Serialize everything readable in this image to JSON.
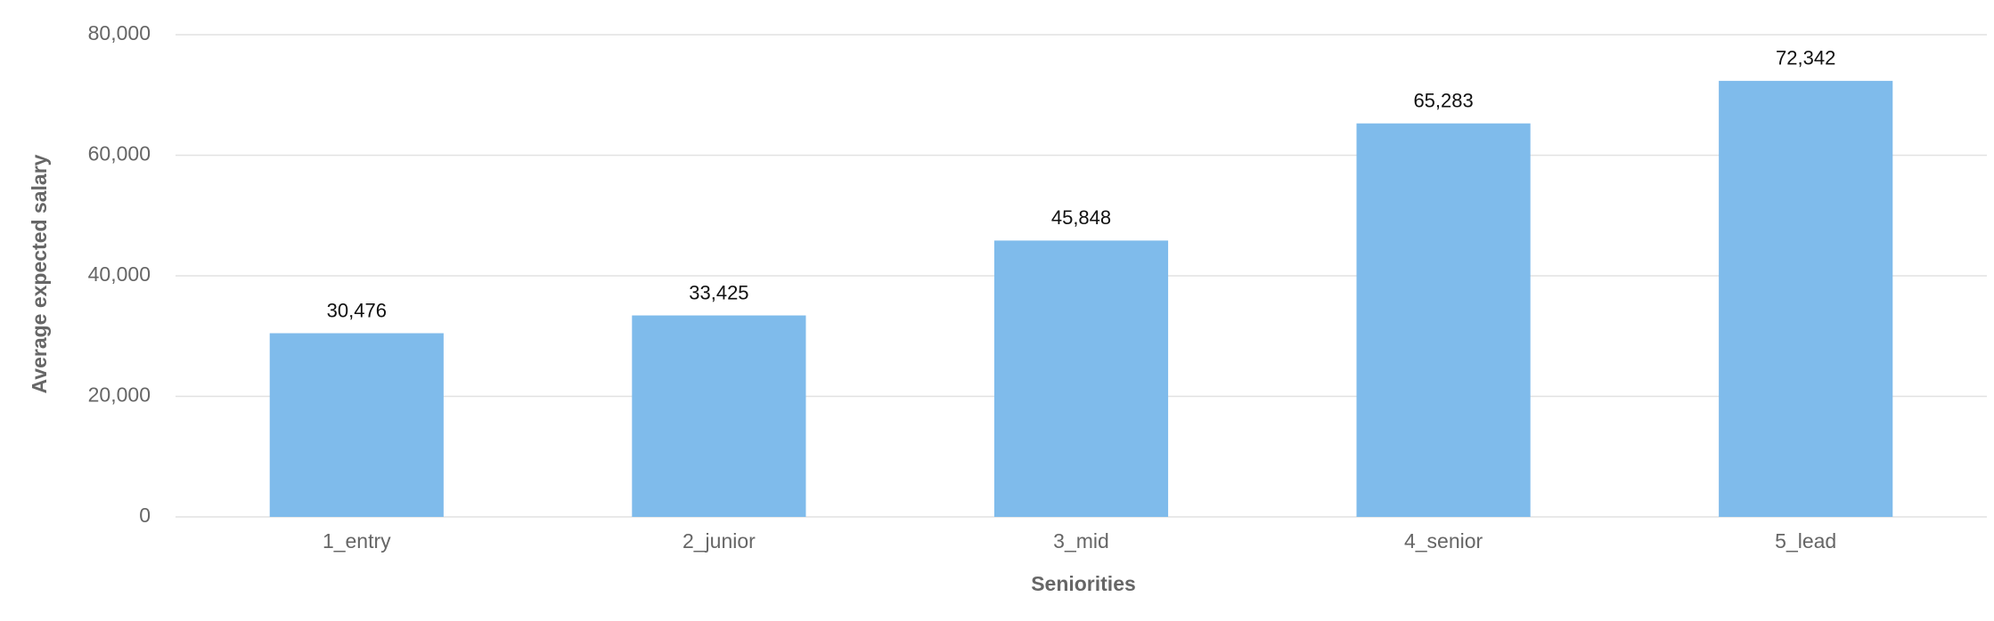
{
  "chart_data": {
    "type": "bar",
    "x_label": "Seniorities",
    "y_label": "Average expected salary",
    "categories": [
      "1_entry",
      "2_junior",
      "3_mid",
      "4_senior",
      "5_lead"
    ],
    "values": [
      30476,
      33425,
      45848,
      65283,
      72342
    ],
    "value_labels": [
      "30,476",
      "33,425",
      "45,848",
      "65,283",
      "72,342"
    ],
    "color": "#7fbbeb",
    "ylim": [
      0,
      80000
    ],
    "yticks": [
      0,
      {
        "value": 20000,
        "label": "20,000"
      },
      {
        "value": 40000,
        "label": "40,000"
      },
      {
        "value": 60000,
        "label": "60,000"
      },
      {
        "value": 80000,
        "label": "80,000"
      }
    ],
    "grid": true
  }
}
